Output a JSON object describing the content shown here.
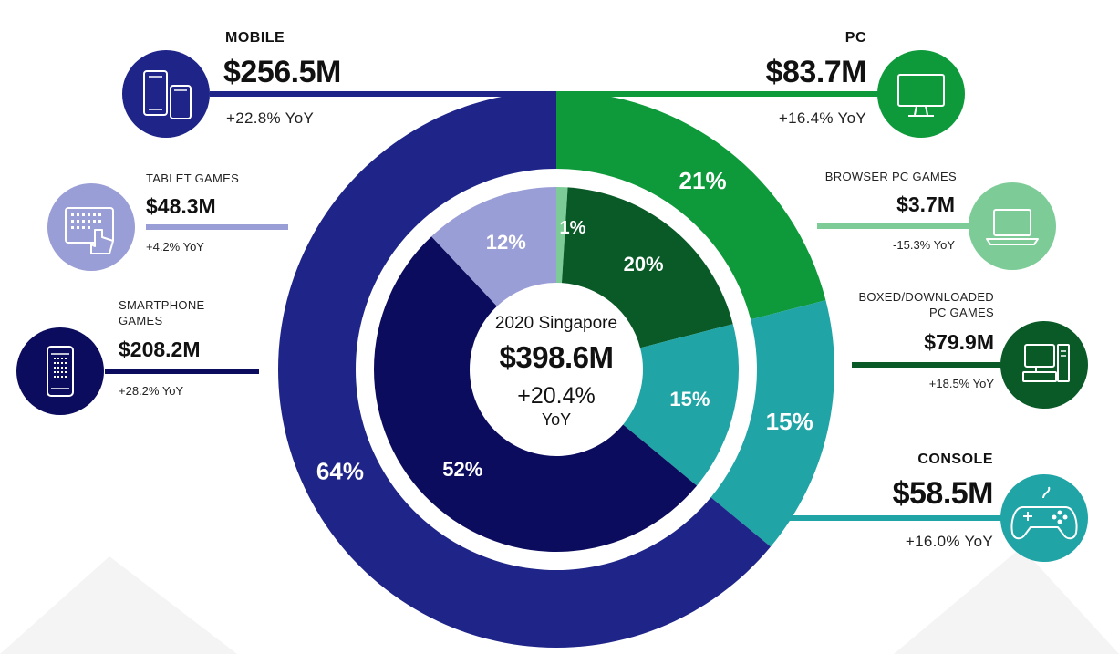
{
  "chart_data": {
    "type": "pie",
    "title": "2020 Singapore",
    "total": "$398.6M",
    "total_growth": "+20.4%",
    "total_growth_unit": "YoY",
    "outer_ring": [
      {
        "name": "PC",
        "value": 21,
        "label": "21%",
        "revenue": "$83.7M",
        "yoy": "+16.4% YoY",
        "color": "#0e9a3a"
      },
      {
        "name": "CONSOLE",
        "value": 15,
        "label": "15%",
        "revenue": "$58.5M",
        "yoy": "+16.0% YoY",
        "color": "#20a4a6"
      },
      {
        "name": "MOBILE",
        "value": 64,
        "label": "64%",
        "revenue": "$256.5M",
        "yoy": "+22.8% YoY",
        "color": "#1e2488"
      }
    ],
    "inner_ring": [
      {
        "name": "BROWSER PC GAMES",
        "value": 1,
        "label": "1%",
        "revenue": "$3.7M",
        "yoy": "-15.3% YoY",
        "color": "#7dcc98"
      },
      {
        "name": "BOXED/DOWNLOADED PC GAMES",
        "value": 20,
        "label": "20%",
        "revenue": "$79.9M",
        "yoy": "+18.5% YoY",
        "color": "#0a5a28"
      },
      {
        "name": "CONSOLE",
        "value": 15,
        "label": "15%",
        "color": "#20a4a6"
      },
      {
        "name": "SMARTPHONE GAMES",
        "value": 52,
        "label": "52%",
        "revenue": "$208.2M",
        "yoy": "+28.2% YoY",
        "color": "#0c0c5e"
      },
      {
        "name": "TABLET GAMES",
        "value": 12,
        "label": "12%",
        "revenue": "$48.3M",
        "yoy": "+4.2% YoY",
        "color": "#9a9ed6"
      }
    ]
  },
  "labels": {
    "mobile": {
      "category": "MOBILE",
      "value": "$256.5M",
      "yoy": "+22.8% YoY"
    },
    "tablet": {
      "category_line1": "TABLET GAMES",
      "value": "$48.3M",
      "yoy": "+4.2% YoY"
    },
    "smartphone": {
      "category_line1": "SMARTPHONE",
      "category_line2": "GAMES",
      "value": "$208.2M",
      "yoy": "+28.2% YoY"
    },
    "pc": {
      "category": "PC",
      "value": "$83.7M",
      "yoy": "+16.4% YoY"
    },
    "browser": {
      "category_line1": "BROWSER PC GAMES",
      "value": "$3.7M",
      "yoy": "-15.3% YoY"
    },
    "boxed": {
      "category_line1": "BOXED/DOWNLOADED",
      "category_line2": "PC GAMES",
      "value": "$79.9M",
      "yoy": "+18.5% YoY"
    },
    "console": {
      "category": "CONSOLE",
      "value": "$58.5M",
      "yoy": "+16.0% YoY"
    }
  },
  "icons": {
    "mobile": "mobile-devices-icon",
    "tablet": "tablet-touch-icon",
    "smartphone": "smartphone-icon",
    "pc": "monitor-icon",
    "browser": "laptop-icon",
    "boxed": "desktop-computer-icon",
    "console": "gamepad-icon"
  },
  "colors": {
    "mobile": "#1e2488",
    "tablet": "#9a9ed6",
    "smartphone": "#0c0c5e",
    "pc": "#0e9a3a",
    "browser": "#7dcc98",
    "boxed": "#0a5a28",
    "console": "#20a4a6"
  }
}
